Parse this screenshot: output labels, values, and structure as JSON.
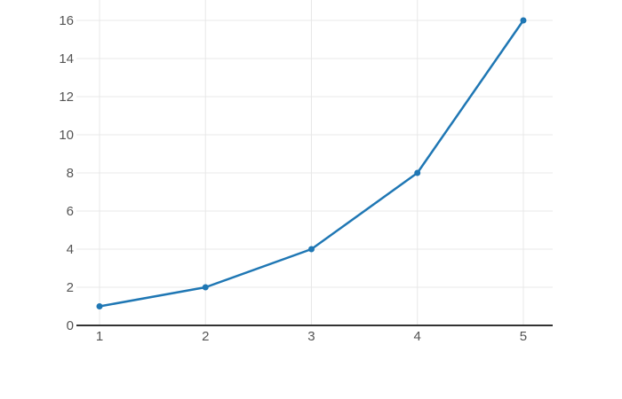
{
  "chart_data": {
    "type": "line",
    "x": [
      1,
      2,
      3,
      4,
      5
    ],
    "y": [
      1,
      2,
      4,
      8,
      16
    ],
    "x_tick_labels": [
      "1",
      "2",
      "3",
      "4",
      "5"
    ],
    "x_tick_values": [
      1,
      2,
      3,
      4,
      5
    ],
    "y_tick_labels": [
      "0",
      "2",
      "4",
      "6",
      "8",
      "10",
      "12",
      "14",
      "16"
    ],
    "y_tick_values": [
      0,
      2,
      4,
      6,
      8,
      10,
      12,
      14,
      16
    ],
    "xlim": [
      0.782,
      5.277
    ],
    "ylim": [
      0,
      17.07
    ],
    "grid": true,
    "legend": false,
    "marker": "circle",
    "colors": {
      "line": "#1f77b4",
      "marker": "#1f77b4",
      "grid": "#e8e8e8",
      "axis_line": "#333333",
      "tick_label": "#545454",
      "background": "#ffffff"
    }
  }
}
